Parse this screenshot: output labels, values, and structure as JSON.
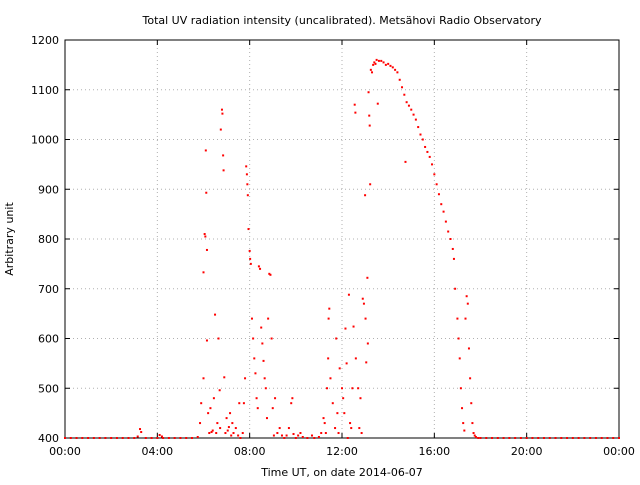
{
  "chart_data": {
    "type": "scatter",
    "title": "Total UV radiation intensity (uncalibrated). Metsähovi Radio Observatory",
    "xlabel": "Time UT, on date 2014-06-07",
    "ylabel": "Arbitrary unit",
    "xlim_hours": [
      0,
      24
    ],
    "ylim": [
      400,
      1200
    ],
    "x_tick_hours": [
      0,
      4,
      8,
      12,
      16,
      20,
      24
    ],
    "x_tick_labels": [
      "00:00",
      "04:00",
      "08:00",
      "12:00",
      "16:00",
      "20:00",
      "00:00"
    ],
    "y_ticks": [
      400,
      500,
      600,
      700,
      800,
      900,
      1000,
      1100,
      1200
    ],
    "grid": true,
    "point_color": "#ff0000",
    "x_units": "hours UT",
    "points": [
      [
        0.0,
        400
      ],
      [
        0.25,
        400
      ],
      [
        0.5,
        400
      ],
      [
        0.75,
        400
      ],
      [
        1.0,
        400
      ],
      [
        1.25,
        400
      ],
      [
        1.5,
        400
      ],
      [
        1.75,
        400
      ],
      [
        2.0,
        400
      ],
      [
        2.25,
        400
      ],
      [
        2.5,
        400
      ],
      [
        2.75,
        400
      ],
      [
        3.0,
        400
      ],
      [
        3.15,
        403
      ],
      [
        3.25,
        418
      ],
      [
        3.3,
        412
      ],
      [
        3.5,
        400
      ],
      [
        3.75,
        400
      ],
      [
        4.0,
        400
      ],
      [
        4.1,
        406
      ],
      [
        4.2,
        403
      ],
      [
        4.25,
        400
      ],
      [
        4.5,
        400
      ],
      [
        4.75,
        400
      ],
      [
        5.0,
        400
      ],
      [
        5.25,
        400
      ],
      [
        5.5,
        400
      ],
      [
        5.75,
        402
      ],
      [
        5.85,
        430
      ],
      [
        5.9,
        470
      ],
      [
        6.0,
        520
      ],
      [
        6.0,
        733
      ],
      [
        6.05,
        810
      ],
      [
        6.08,
        805
      ],
      [
        6.1,
        978
      ],
      [
        6.12,
        893
      ],
      [
        6.15,
        778
      ],
      [
        6.15,
        596
      ],
      [
        6.2,
        450
      ],
      [
        6.25,
        410
      ],
      [
        6.3,
        460
      ],
      [
        6.35,
        412
      ],
      [
        6.4,
        415
      ],
      [
        6.45,
        480
      ],
      [
        6.5,
        648
      ],
      [
        6.55,
        410
      ],
      [
        6.6,
        430
      ],
      [
        6.65,
        600
      ],
      [
        6.7,
        496
      ],
      [
        6.72,
        420
      ],
      [
        6.75,
        1020
      ],
      [
        6.8,
        1060
      ],
      [
        6.82,
        1052
      ],
      [
        6.85,
        968
      ],
      [
        6.87,
        938
      ],
      [
        6.9,
        522
      ],
      [
        6.95,
        410
      ],
      [
        7.0,
        440
      ],
      [
        7.05,
        415
      ],
      [
        7.1,
        422
      ],
      [
        7.15,
        450
      ],
      [
        7.2,
        405
      ],
      [
        7.25,
        430
      ],
      [
        7.3,
        410
      ],
      [
        7.4,
        420
      ],
      [
        7.5,
        405
      ],
      [
        7.55,
        470
      ],
      [
        7.6,
        400
      ],
      [
        7.7,
        410
      ],
      [
        7.75,
        470
      ],
      [
        7.8,
        520
      ],
      [
        7.85,
        946
      ],
      [
        7.88,
        930
      ],
      [
        7.9,
        910
      ],
      [
        7.92,
        888
      ],
      [
        7.95,
        820
      ],
      [
        8.0,
        776
      ],
      [
        8.02,
        760
      ],
      [
        8.05,
        750
      ],
      [
        8.1,
        640
      ],
      [
        8.15,
        600
      ],
      [
        8.2,
        560
      ],
      [
        8.25,
        530
      ],
      [
        8.3,
        480
      ],
      [
        8.35,
        460
      ],
      [
        8.4,
        745
      ],
      [
        8.45,
        740
      ],
      [
        8.5,
        622
      ],
      [
        8.55,
        590
      ],
      [
        8.6,
        555
      ],
      [
        8.65,
        520
      ],
      [
        8.7,
        500
      ],
      [
        8.75,
        440
      ],
      [
        8.8,
        640
      ],
      [
        8.85,
        730
      ],
      [
        8.9,
        728
      ],
      [
        8.95,
        600
      ],
      [
        9.0,
        460
      ],
      [
        9.05,
        405
      ],
      [
        9.1,
        480
      ],
      [
        9.2,
        410
      ],
      [
        9.3,
        420
      ],
      [
        9.4,
        405
      ],
      [
        9.5,
        400
      ],
      [
        9.6,
        405
      ],
      [
        9.7,
        420
      ],
      [
        9.8,
        470
      ],
      [
        9.85,
        480
      ],
      [
        9.9,
        408
      ],
      [
        10.0,
        400
      ],
      [
        10.1,
        405
      ],
      [
        10.2,
        410
      ],
      [
        10.3,
        402
      ],
      [
        10.5,
        400
      ],
      [
        10.7,
        405
      ],
      [
        10.8,
        400
      ],
      [
        11.0,
        402
      ],
      [
        11.1,
        410
      ],
      [
        11.2,
        440
      ],
      [
        11.25,
        430
      ],
      [
        11.3,
        410
      ],
      [
        11.35,
        500
      ],
      [
        11.4,
        560
      ],
      [
        11.42,
        640
      ],
      [
        11.45,
        660
      ],
      [
        11.5,
        520
      ],
      [
        11.6,
        470
      ],
      [
        11.7,
        420
      ],
      [
        11.75,
        600
      ],
      [
        11.8,
        450
      ],
      [
        11.85,
        410
      ],
      [
        11.9,
        540
      ],
      [
        12.0,
        500
      ],
      [
        12.05,
        480
      ],
      [
        12.1,
        450
      ],
      [
        12.15,
        620
      ],
      [
        12.2,
        550
      ],
      [
        12.25,
        400
      ],
      [
        12.3,
        688
      ],
      [
        12.35,
        430
      ],
      [
        12.4,
        420
      ],
      [
        12.45,
        500
      ],
      [
        12.5,
        624
      ],
      [
        12.55,
        1070
      ],
      [
        12.58,
        1054
      ],
      [
        12.6,
        560
      ],
      [
        12.7,
        500
      ],
      [
        12.75,
        420
      ],
      [
        12.8,
        480
      ],
      [
        12.85,
        410
      ],
      [
        12.9,
        680
      ],
      [
        12.95,
        670
      ],
      [
        13.0,
        888
      ],
      [
        13.02,
        640
      ],
      [
        13.05,
        552
      ],
      [
        13.1,
        722
      ],
      [
        13.12,
        590
      ],
      [
        13.15,
        1095
      ],
      [
        13.18,
        1048
      ],
      [
        13.2,
        1028
      ],
      [
        13.22,
        910
      ],
      [
        13.25,
        1140
      ],
      [
        13.3,
        1135
      ],
      [
        13.35,
        1150
      ],
      [
        13.4,
        1155
      ],
      [
        13.45,
        1152
      ],
      [
        13.5,
        1160
      ],
      [
        13.55,
        1072
      ],
      [
        13.6,
        1158
      ],
      [
        13.7,
        1158
      ],
      [
        13.8,
        1155
      ],
      [
        13.9,
        1150
      ],
      [
        14.0,
        1152
      ],
      [
        14.1,
        1148
      ],
      [
        14.2,
        1145
      ],
      [
        14.3,
        1140
      ],
      [
        14.4,
        1135
      ],
      [
        14.5,
        1120
      ],
      [
        14.6,
        1105
      ],
      [
        14.7,
        1090
      ],
      [
        14.75,
        955
      ],
      [
        14.8,
        1075
      ],
      [
        14.9,
        1068
      ],
      [
        15.0,
        1060
      ],
      [
        15.1,
        1050
      ],
      [
        15.2,
        1040
      ],
      [
        15.3,
        1025
      ],
      [
        15.4,
        1010
      ],
      [
        15.5,
        1000
      ],
      [
        15.6,
        985
      ],
      [
        15.7,
        975
      ],
      [
        15.8,
        965
      ],
      [
        15.9,
        950
      ],
      [
        16.0,
        930
      ],
      [
        16.1,
        910
      ],
      [
        16.2,
        890
      ],
      [
        16.3,
        870
      ],
      [
        16.4,
        855
      ],
      [
        16.5,
        835
      ],
      [
        16.6,
        815
      ],
      [
        16.7,
        800
      ],
      [
        16.8,
        780
      ],
      [
        16.85,
        760
      ],
      [
        16.9,
        700
      ],
      [
        17.0,
        640
      ],
      [
        17.05,
        600
      ],
      [
        17.1,
        560
      ],
      [
        17.15,
        500
      ],
      [
        17.2,
        460
      ],
      [
        17.25,
        430
      ],
      [
        17.3,
        415
      ],
      [
        17.35,
        640
      ],
      [
        17.4,
        685
      ],
      [
        17.45,
        670
      ],
      [
        17.5,
        580
      ],
      [
        17.55,
        520
      ],
      [
        17.6,
        470
      ],
      [
        17.65,
        430
      ],
      [
        17.7,
        410
      ],
      [
        17.75,
        405
      ],
      [
        17.8,
        402
      ],
      [
        17.9,
        400
      ],
      [
        18.0,
        400
      ],
      [
        18.25,
        400
      ],
      [
        18.5,
        400
      ],
      [
        18.75,
        400
      ],
      [
        19.0,
        400
      ],
      [
        19.25,
        400
      ],
      [
        19.5,
        400
      ],
      [
        19.75,
        400
      ],
      [
        20.0,
        400
      ],
      [
        20.25,
        400
      ],
      [
        20.5,
        400
      ],
      [
        20.75,
        400
      ],
      [
        21.0,
        400
      ],
      [
        21.25,
        400
      ],
      [
        21.5,
        400
      ],
      [
        21.75,
        400
      ],
      [
        22.0,
        400
      ],
      [
        22.25,
        400
      ],
      [
        22.5,
        400
      ],
      [
        22.75,
        400
      ],
      [
        23.0,
        400
      ],
      [
        23.25,
        400
      ],
      [
        23.5,
        400
      ],
      [
        23.75,
        400
      ],
      [
        24.0,
        400
      ]
    ]
  }
}
